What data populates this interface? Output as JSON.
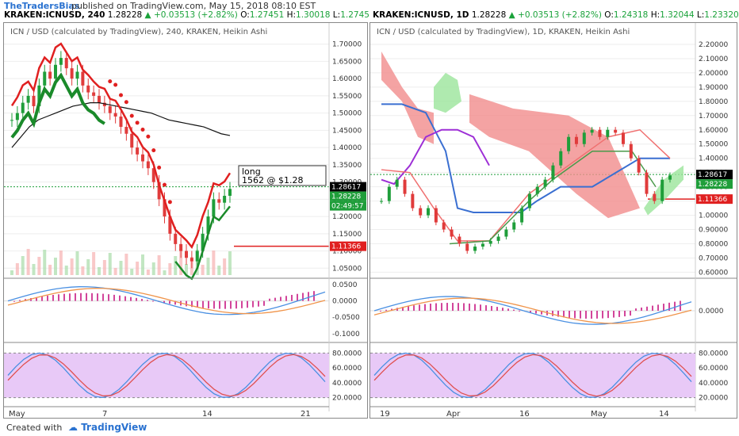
{
  "header": {
    "brand": "TheTradersBias",
    "rest": "published on TradingView.com, May 15, 2018 08:10 EST"
  },
  "left_symbol": {
    "name": "KRAKEN:ICNUSD, 240",
    "last": "1.28228",
    "change": "▲ +0.03513 (+2.82%)",
    "o_label": "O:",
    "o": "1.27451",
    "h_label": "H:",
    "h": "1.30018",
    "l_label": "L:",
    "l": "1.2745"
  },
  "right_symbol": {
    "name": "KRAKEN:ICNUSD, 1D",
    "last": "1.28228",
    "change": "▲ +0.03513 (+2.82%)",
    "o_label": "O:",
    "o": "1.24318",
    "h_label": "H:",
    "h": "1.32044",
    "l_label": "L:",
    "l": "1.23320"
  },
  "colors": {
    "bull": "#1f9e3a",
    "bear": "#e03b3b",
    "red_line": "#e02020",
    "green_line": "#1a8a2a",
    "purple": "#9d2fd6",
    "blue": "#3a6fd1",
    "cloud_red": "#f18c8c",
    "cloud_green": "#9be59b",
    "stoch_band": "#e8c9f7",
    "macd_blue": "#4a90e2",
    "macd_orange": "#f0944a",
    "macd_hist": "#d2459a"
  },
  "annotation": {
    "line1": "long",
    "line2": "1562 @ $1.28"
  },
  "footer": {
    "created": "Created with",
    "tv": "TradingView"
  },
  "chart_data": [
    {
      "type": "line",
      "title": "ICN / USD (calculated by TradingView), 240, KRAKEN, Heikin Ashi",
      "pane": "price",
      "x_ticks": [
        "May",
        "7",
        "14",
        "21"
      ],
      "y_ticks": [
        "1.70000",
        "1.65000",
        "1.60000",
        "1.55000",
        "1.50000",
        "1.45000",
        "1.40000",
        "1.35000",
        "1.30000",
        "1.25000",
        "1.20000",
        "1.15000",
        "1.10000",
        "1.05000"
      ],
      "ylim": [
        1.03,
        1.72
      ],
      "close_series": [
        1.48,
        1.5,
        1.53,
        1.55,
        1.52,
        1.58,
        1.62,
        1.6,
        1.64,
        1.66,
        1.63,
        1.6,
        1.62,
        1.58,
        1.56,
        1.55,
        1.53,
        1.52,
        1.5,
        1.49,
        1.46,
        1.44,
        1.4,
        1.38,
        1.36,
        1.34,
        1.3,
        1.25,
        1.2,
        1.15,
        1.12,
        1.1,
        1.08,
        1.07,
        1.1,
        1.15,
        1.2,
        1.25,
        1.24,
        1.26,
        1.28
      ],
      "ma_series": [
        1.4,
        1.43,
        1.46,
        1.48,
        1.49,
        1.5,
        1.51,
        1.52,
        1.525,
        1.53,
        1.53,
        1.525,
        1.52,
        1.515,
        1.51,
        1.505,
        1.5,
        1.49,
        1.48,
        1.475,
        1.47,
        1.465,
        1.46,
        1.45,
        1.44,
        1.435
      ],
      "labels": {
        "last": "1.28617",
        "close": "1.28228",
        "timer": "02:49:57",
        "stop": "1.11366"
      },
      "stop_level": 1.11366,
      "entry_level": 1.28617
    },
    {
      "type": "line",
      "title": "ICN / USD (calculated by TradingView), 1D, KRAKEN, Heikin Ashi",
      "pane": "price",
      "x_ticks": [
        "19",
        "Apr",
        "16",
        "May",
        "14"
      ],
      "y_ticks": [
        "2.20000",
        "2.10000",
        "2.00000",
        "1.90000",
        "1.80000",
        "1.70000",
        "1.60000",
        "1.50000",
        "1.40000",
        "1.30000",
        "1.20000",
        "1.10000",
        "1.00000",
        "0.90000",
        "0.80000",
        "0.70000",
        "0.60000"
      ],
      "ylim": [
        0.58,
        2.25
      ],
      "close_series": [
        1.1,
        1.2,
        1.25,
        1.15,
        1.05,
        1.0,
        1.05,
        0.95,
        0.9,
        0.85,
        0.8,
        0.75,
        0.78,
        0.8,
        0.82,
        0.85,
        0.9,
        0.95,
        1.05,
        1.15,
        1.2,
        1.25,
        1.35,
        1.45,
        1.55,
        1.5,
        1.58,
        1.6,
        1.55,
        1.6,
        1.58,
        1.5,
        1.4,
        1.3,
        1.15,
        1.1,
        1.25,
        1.28
      ],
      "labels": {
        "last": "1.28617",
        "close": "1.28228",
        "stop": "1.11366"
      },
      "stop_level": 1.11366,
      "entry_level": 1.28617
    },
    {
      "type": "line",
      "pane": "macd",
      "y_ticks_left": [
        "0.0500",
        "0.0000",
        "-0.0500",
        "-0.1000"
      ],
      "y_ticks_right": [
        "0.0000"
      ],
      "ylim_left": [
        -0.12,
        0.06
      ]
    },
    {
      "type": "line",
      "pane": "stochastic",
      "y_ticks": [
        "80.0000",
        "60.0000",
        "40.0000",
        "20.0000"
      ],
      "ylim": [
        10,
        90
      ],
      "band": [
        20,
        80
      ]
    }
  ]
}
